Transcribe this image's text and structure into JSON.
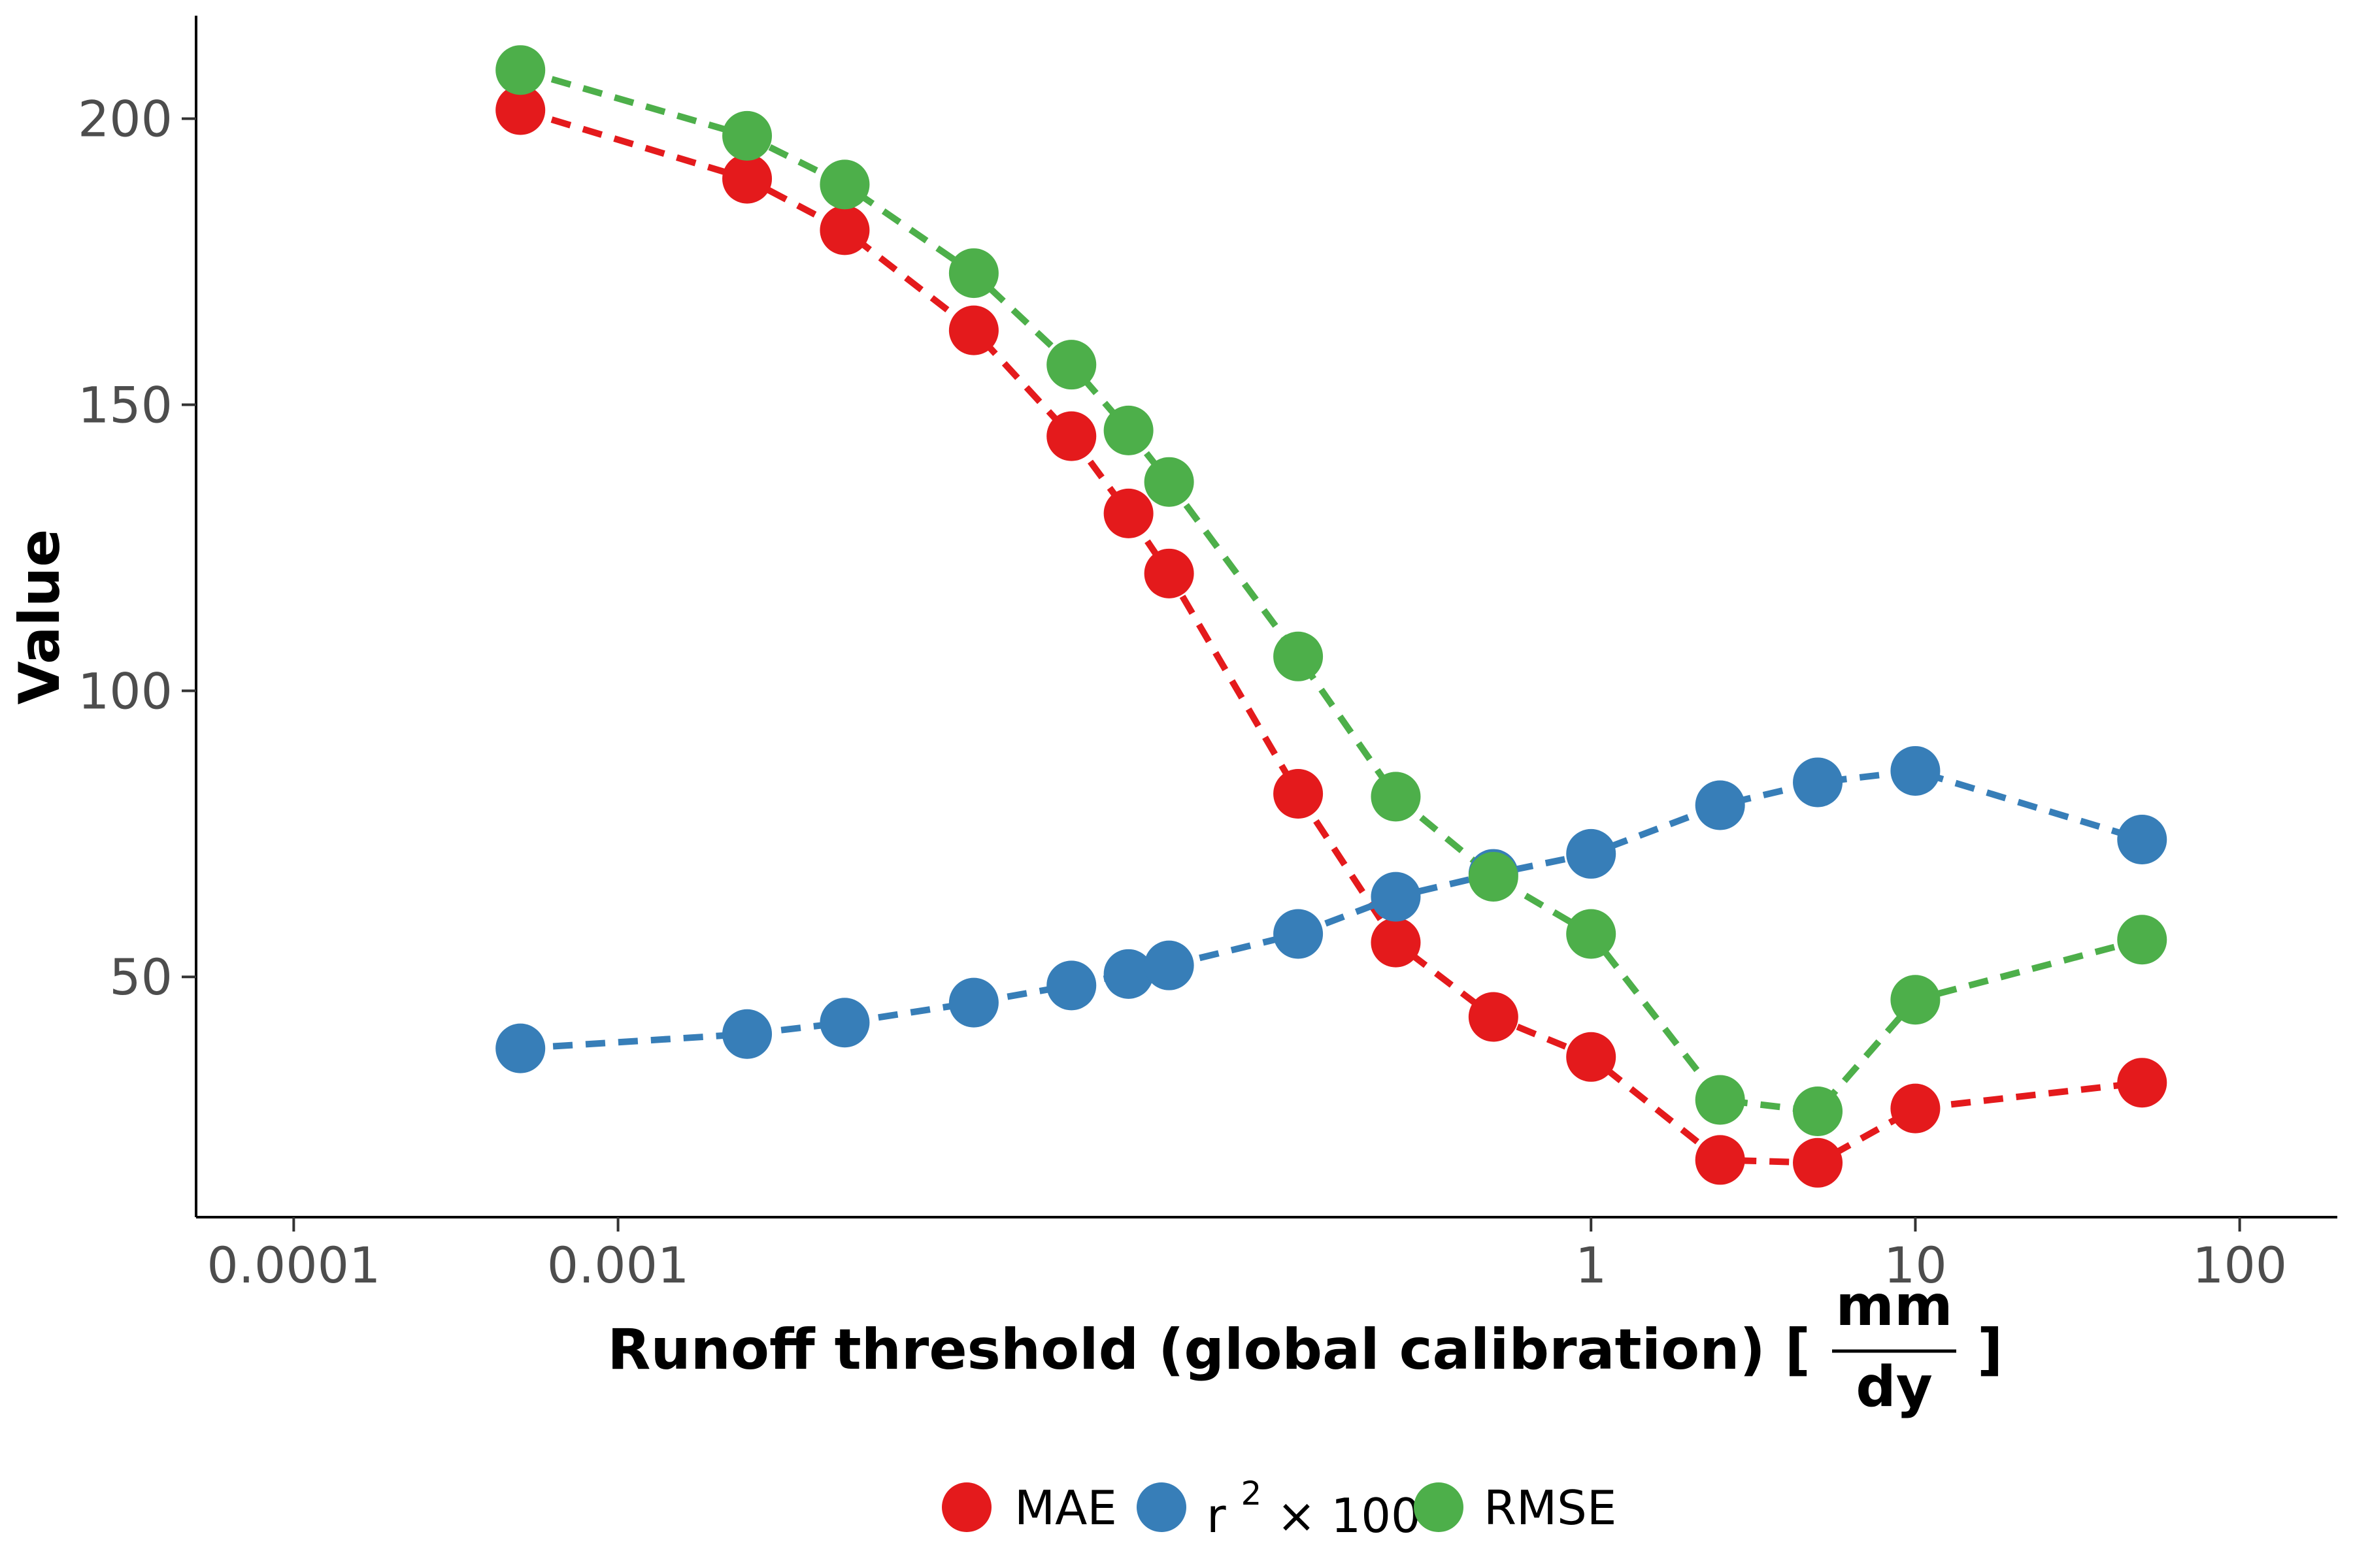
{
  "chart_data": {
    "type": "scatter",
    "xscale": "log10",
    "xlim": [
      5e-05,
      200
    ],
    "ylim": [
      8,
      218
    ],
    "xticks": [
      0.0001,
      0.001,
      1,
      10,
      100
    ],
    "xtick_labels": [
      "0.0001",
      "0.001",
      "1",
      "10",
      "100"
    ],
    "yticks": [
      50,
      100,
      150,
      200
    ],
    "ytick_labels": [
      "50",
      "100",
      "150",
      "200"
    ],
    "xlabel": "Runoff threshold (global calibration) [",
    "xlabel_fraction": {
      "numerator": "mm",
      "denominator": "dy"
    },
    "xlabel_close": "]",
    "ylabel": "Value",
    "grid": false,
    "legend_position": "bottom",
    "line_style": "dashed",
    "x": [
      0.0005,
      0.0025,
      0.005,
      0.0125,
      0.025,
      0.0375,
      0.05,
      0.125,
      0.25,
      0.5,
      1,
      2.5,
      5,
      10,
      50
    ],
    "series": [
      {
        "name": "MAE",
        "color": "#e41a1c",
        "values": [
          201.5,
          189.5,
          180.5,
          163,
          144.5,
          131,
          120.5,
          82,
          56,
          43,
          36,
          18,
          17.5,
          27,
          31.5
        ]
      },
      {
        "name": "r² × 100",
        "legend_base": "r",
        "legend_sup": "2",
        "legend_rest": " × 100",
        "color": "#377eb8",
        "values": [
          37.5,
          40,
          42,
          45.5,
          48.5,
          50.5,
          52,
          57.5,
          64,
          68,
          71.5,
          80,
          84,
          86,
          74
        ]
      },
      {
        "name": "RMSE",
        "color": "#4daf4a",
        "values": [
          208.5,
          197,
          188.5,
          173,
          157,
          145.5,
          136.5,
          106,
          81.5,
          67.5,
          57.5,
          28.5,
          26.5,
          46,
          56.5
        ]
      }
    ]
  }
}
